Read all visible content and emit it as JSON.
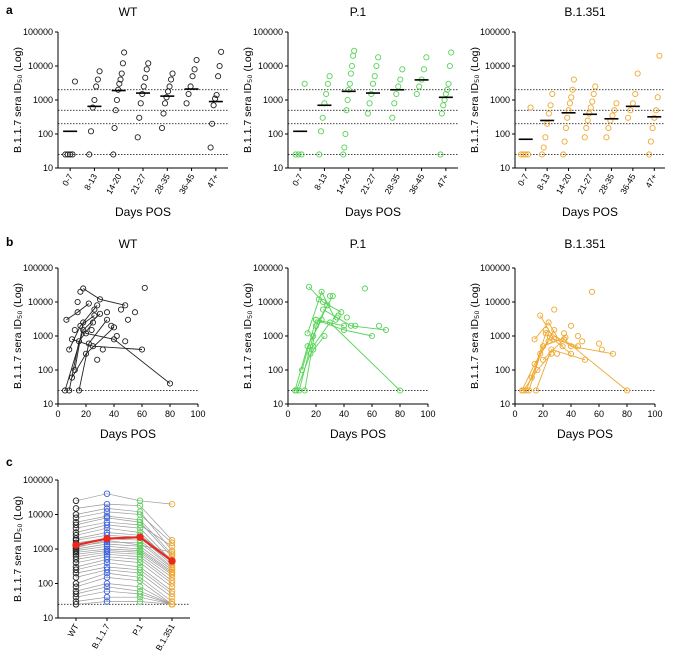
{
  "figure": {
    "panel_labels": [
      "a",
      "b",
      "c"
    ],
    "ylabel": "B.1.1.7 sera ID₅₀ (Log)",
    "xlabel": "Days POS",
    "y_ticks": [
      "10",
      "100",
      "1000",
      "10000",
      "100000"
    ],
    "x_ticks_b": [
      "0",
      "20",
      "40",
      "60",
      "80",
      "100"
    ],
    "colors": {
      "WT": "#222222",
      "P.1": "#55d455",
      "B.1.351": "#f0a830",
      "B.1.1.7": "#3a62e0",
      "mean": "#e8281e",
      "pairs": "#9a9a9a"
    }
  },
  "chart_data": [
    {
      "id": "a",
      "type": "scatter",
      "xlabel": "Days POS",
      "ylabel": "B.1.1.7 sera ID50 (Log)",
      "yscale": "log",
      "ylim": [
        10,
        100000
      ],
      "categories": [
        "0-7",
        "8-13",
        "14-20",
        "21-27",
        "28-35",
        "36-45",
        "47+"
      ],
      "reference_lines": [
        25,
        200,
        500,
        2000
      ],
      "panels": [
        {
          "title": "WT",
          "color": "#222222",
          "medians": [
            120,
            650,
            1900,
            1600,
            1300,
            2100,
            900
          ],
          "points": [
            [
              25,
              25,
              25,
              25,
              3500
            ],
            [
              25,
              120,
              600,
              1000,
              2500,
              4000,
              7000
            ],
            [
              25,
              150,
              500,
              1000,
              2000,
              3000,
              4000,
              6000,
              12000,
              25000
            ],
            [
              80,
              300,
              800,
              1500,
              2500,
              4500,
              8000,
              12000
            ],
            [
              150,
              400,
              800,
              1200,
              1800,
              2500,
              4000,
              6000
            ],
            [
              800,
              1500,
              2500,
              5000,
              8000,
              15000
            ],
            [
              40,
              200,
              700,
              1100,
              1400,
              5000,
              10000,
              26000
            ]
          ]
        },
        {
          "title": "P.1",
          "color": "#55d455",
          "medians": [
            120,
            700,
            1800,
            1600,
            2000,
            3900,
            1200
          ],
          "points": [
            [
              25,
              25,
              25,
              3000
            ],
            [
              25,
              120,
              300,
              800,
              1500,
              3000,
              5000
            ],
            [
              25,
              40,
              100,
              500,
              1000,
              2000,
              3000,
              6000,
              10000,
              20000,
              28000
            ],
            [
              400,
              800,
              1500,
              3000,
              5000,
              10000,
              18000
            ],
            [
              300,
              800,
              1500,
              2500,
              4000,
              8000
            ],
            [
              1500,
              2500,
              4000,
              8000,
              18000
            ],
            [
              25,
              400,
              700,
              1000,
              1500,
              2000,
              3000,
              10000,
              25000
            ]
          ]
        },
        {
          "title": "B.1.351",
          "color": "#f0a830",
          "medians": [
            70,
            250,
            420,
            380,
            280,
            650,
            320
          ],
          "points": [
            [
              25,
              25,
              25,
              25,
              600
            ],
            [
              25,
              40,
              80,
              200,
              400,
              700,
              1500
            ],
            [
              25,
              60,
              150,
              300,
              500,
              800,
              1200,
              2000,
              4000
            ],
            [
              80,
              150,
              250,
              400,
              600,
              900,
              1500,
              2500
            ],
            [
              80,
              150,
              250,
              350,
              500,
              800
            ],
            [
              300,
              500,
              800,
              1500,
              6000
            ],
            [
              25,
              60,
              150,
              300,
              500,
              1200,
              20000
            ]
          ]
        }
      ]
    },
    {
      "id": "b",
      "type": "line",
      "xlabel": "Days POS",
      "ylabel": "B.1.1.7 sera ID50 (Log)",
      "yscale": "log",
      "ylim": [
        10,
        100000
      ],
      "xlim": [
        0,
        100
      ],
      "reference_lines": [
        25
      ],
      "panels": [
        {
          "title": "WT",
          "color": "#222222",
          "lines": [
            [
              [
                5,
                25
              ],
              [
                18,
                1500
              ],
              [
                30,
                4500
              ]
            ],
            [
              [
                8,
                25
              ],
              [
                15,
                700
              ],
              [
                25,
                2500
              ]
            ],
            [
              [
                10,
                60
              ],
              [
                20,
                300
              ],
              [
                40,
                1800
              ]
            ],
            [
              [
                12,
                100
              ],
              [
                18,
                2500
              ],
              [
                28,
                8000
              ]
            ],
            [
              [
                15,
                25
              ],
              [
                22,
                600
              ],
              [
                35,
                3000
              ]
            ],
            [
              [
                6,
                3000
              ],
              [
                14,
                5000
              ],
              [
                22,
                9000
              ]
            ],
            [
              [
                18,
                25000
              ],
              [
                30,
                12000
              ],
              [
                48,
                8000
              ]
            ],
            [
              [
                10,
                800
              ],
              [
                25,
                500
              ],
              [
                60,
                400
              ]
            ],
            [
              [
                20,
                1200
              ],
              [
                40,
                800
              ],
              [
                80,
                40
              ]
            ],
            [
              [
                8,
                400
              ],
              [
                16,
                2000
              ],
              [
                26,
                4000
              ]
            ]
          ],
          "points": [
            [
              35,
              5000
            ],
            [
              45,
              6000
            ],
            [
              55,
              5000
            ],
            [
              62,
              26000
            ],
            [
              50,
              3000
            ],
            [
              38,
              2000
            ],
            [
              42,
              1000
            ],
            [
              48,
              700
            ],
            [
              28,
              200
            ],
            [
              32,
              400
            ],
            [
              24,
              1500
            ],
            [
              26,
              6000
            ],
            [
              14,
              10000
            ],
            [
              12,
              1500
            ],
            [
              16,
              20000
            ]
          ]
        },
        {
          "title": "P.1",
          "color": "#55d455",
          "lines": [
            [
              [
                5,
                25
              ],
              [
                14,
                500
              ],
              [
                24,
                3000
              ]
            ],
            [
              [
                8,
                25
              ],
              [
                18,
                1000
              ],
              [
                28,
                8000
              ]
            ],
            [
              [
                12,
                25
              ],
              [
                20,
                2000
              ],
              [
                32,
                15000
              ]
            ],
            [
              [
                10,
                100
              ],
              [
                20,
                3000
              ],
              [
                40,
                2000
              ]
            ],
            [
              [
                15,
                28000
              ],
              [
                25,
                10000
              ],
              [
                38,
                5000
              ]
            ],
            [
              [
                18,
                500
              ],
              [
                30,
                2500
              ],
              [
                80,
                25
              ]
            ],
            [
              [
                14,
                1200
              ],
              [
                24,
                20000
              ],
              [
                34,
                3000
              ]
            ],
            [
              [
                20,
                3000
              ],
              [
                40,
                1500
              ],
              [
                60,
                1000
              ]
            ],
            [
              [
                25,
                6000
              ],
              [
                45,
                2000
              ],
              [
                70,
                1500
              ]
            ],
            [
              [
                6,
                25
              ],
              [
                16,
                300
              ],
              [
                26,
                1000
              ]
            ]
          ],
          "points": [
            [
              30,
              15000
            ],
            [
              35,
              3500
            ],
            [
              42,
              3500
            ],
            [
              55,
              25000
            ],
            [
              48,
              2000
            ],
            [
              22,
              12000
            ],
            [
              28,
              8000
            ],
            [
              36,
              4000
            ],
            [
              18,
              400
            ],
            [
              65,
              2000
            ]
          ]
        },
        {
          "title": "B.1.351",
          "color": "#f0a830",
          "lines": [
            [
              [
                5,
                25
              ],
              [
                14,
                150
              ],
              [
                24,
                700
              ]
            ],
            [
              [
                8,
                25
              ],
              [
                18,
                300
              ],
              [
                28,
                1500
              ]
            ],
            [
              [
                10,
                25
              ],
              [
                20,
                500
              ],
              [
                36,
                900
              ]
            ],
            [
              [
                12,
                60
              ],
              [
                22,
                1200
              ],
              [
                40,
                300
              ]
            ],
            [
              [
                15,
                25
              ],
              [
                26,
                400
              ],
              [
                50,
                200
              ]
            ],
            [
              [
                18,
                4000
              ],
              [
                28,
                800
              ],
              [
                45,
                500
              ]
            ],
            [
              [
                20,
                200
              ],
              [
                35,
                800
              ],
              [
                80,
                25
              ]
            ],
            [
              [
                14,
                800
              ],
              [
                24,
                2500
              ],
              [
                34,
                500
              ]
            ],
            [
              [
                22,
                1500
              ],
              [
                40,
                500
              ],
              [
                70,
                300
              ]
            ],
            [
              [
                6,
                25
              ],
              [
                16,
                100
              ],
              [
                26,
                300
              ]
            ]
          ],
          "points": [
            [
              55,
              20000
            ],
            [
              40,
              2000
            ],
            [
              45,
              1000
            ],
            [
              60,
              600
            ],
            [
              30,
              300
            ],
            [
              28,
              6000
            ],
            [
              35,
              1200
            ],
            [
              25,
              900
            ],
            [
              48,
              700
            ],
            [
              62,
              400
            ]
          ]
        }
      ]
    },
    {
      "id": "c",
      "type": "scatter",
      "xlabel": "",
      "ylabel": "B.1.1.7 sera ID50 (Log)",
      "yscale": "log",
      "ylim": [
        10,
        100000
      ],
      "categories": [
        "WT",
        "B.1.1.7",
        "P.1",
        "B.1.351"
      ],
      "reference_lines": [
        25
      ],
      "series": [
        {
          "name": "WT",
          "color": "#222222",
          "mean": 1300
        },
        {
          "name": "B.1.1.7",
          "color": "#3a62e0",
          "mean": 2000
        },
        {
          "name": "P.1",
          "color": "#55d455",
          "mean": 2200
        },
        {
          "name": "B.1.351",
          "color": "#f0a830",
          "mean": 450
        }
      ],
      "pairs": [
        [
          25000,
          40000,
          25000,
          20000
        ],
        [
          15000,
          20000,
          18000,
          1800
        ],
        [
          10000,
          15000,
          12000,
          900
        ],
        [
          8000,
          12000,
          10000,
          1500
        ],
        [
          6000,
          9000,
          7000,
          700
        ],
        [
          5000,
          8000,
          6000,
          600
        ],
        [
          4000,
          6000,
          5000,
          1200
        ],
        [
          3000,
          5000,
          4000,
          450
        ],
        [
          2500,
          4000,
          3000,
          400
        ],
        [
          2000,
          3000,
          2500,
          500
        ],
        [
          1800,
          2500,
          2200,
          350
        ],
        [
          1500,
          2000,
          1800,
          300
        ],
        [
          1200,
          1600,
          1500,
          280
        ],
        [
          1000,
          1400,
          1200,
          250
        ],
        [
          900,
          1200,
          1000,
          220
        ],
        [
          800,
          1000,
          900,
          200
        ],
        [
          700,
          900,
          800,
          180
        ],
        [
          600,
          800,
          700,
          150
        ],
        [
          500,
          700,
          600,
          120
        ],
        [
          400,
          600,
          500,
          100
        ],
        [
          300,
          500,
          400,
          80
        ],
        [
          250,
          400,
          300,
          60
        ],
        [
          200,
          300,
          250,
          50
        ],
        [
          150,
          250,
          200,
          40
        ],
        [
          100,
          200,
          150,
          30
        ],
        [
          80,
          150,
          120,
          25
        ],
        [
          60,
          100,
          80,
          25
        ],
        [
          50,
          80,
          60,
          25
        ],
        [
          40,
          60,
          50,
          25
        ],
        [
          30,
          40,
          40,
          25
        ],
        [
          25,
          30,
          30,
          25
        ],
        [
          1100,
          1800,
          1300,
          800
        ]
      ]
    }
  ]
}
